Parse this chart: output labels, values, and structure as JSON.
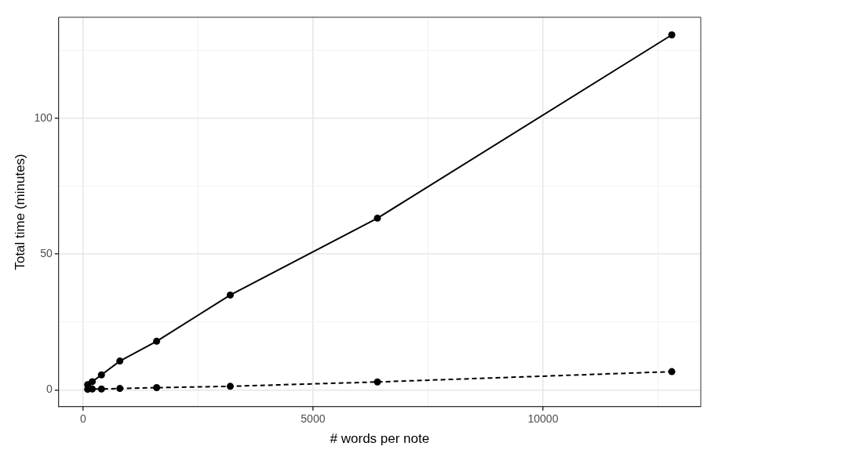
{
  "chart_data": {
    "type": "line",
    "xlabel": "# words per note",
    "ylabel": "Total time (minutes)",
    "x": [
      100,
      200,
      400,
      800,
      1600,
      3200,
      6400,
      12800
    ],
    "series": [
      {
        "color": "#000000",
        "line_style": "solid",
        "values": [
          1.9,
          3.0,
          5.5,
          10.6,
          17.9,
          34.9,
          63.2,
          130.7
        ]
      },
      {
        "color": "#000000",
        "line_style": "dashed",
        "values": [
          0.2,
          0.3,
          0.3,
          0.5,
          0.8,
          1.3,
          2.9,
          6.7
        ]
      }
    ],
    "marker": "circle",
    "xlim": [
      -530,
      13430
    ],
    "ylim": [
      -6.2,
      137.2
    ],
    "xticks": [
      0,
      {
        "value": 2500,
        "label": null
      },
      5000,
      {
        "value": 7500,
        "label": null
      },
      10000,
      {
        "value": 12500,
        "label": null
      }
    ],
    "yticks": [
      0,
      {
        "value": 25,
        "label": null
      },
      50,
      {
        "value": 75,
        "label": null
      },
      100,
      {
        "value": 125,
        "label": null
      }
    ],
    "grid": true
  }
}
